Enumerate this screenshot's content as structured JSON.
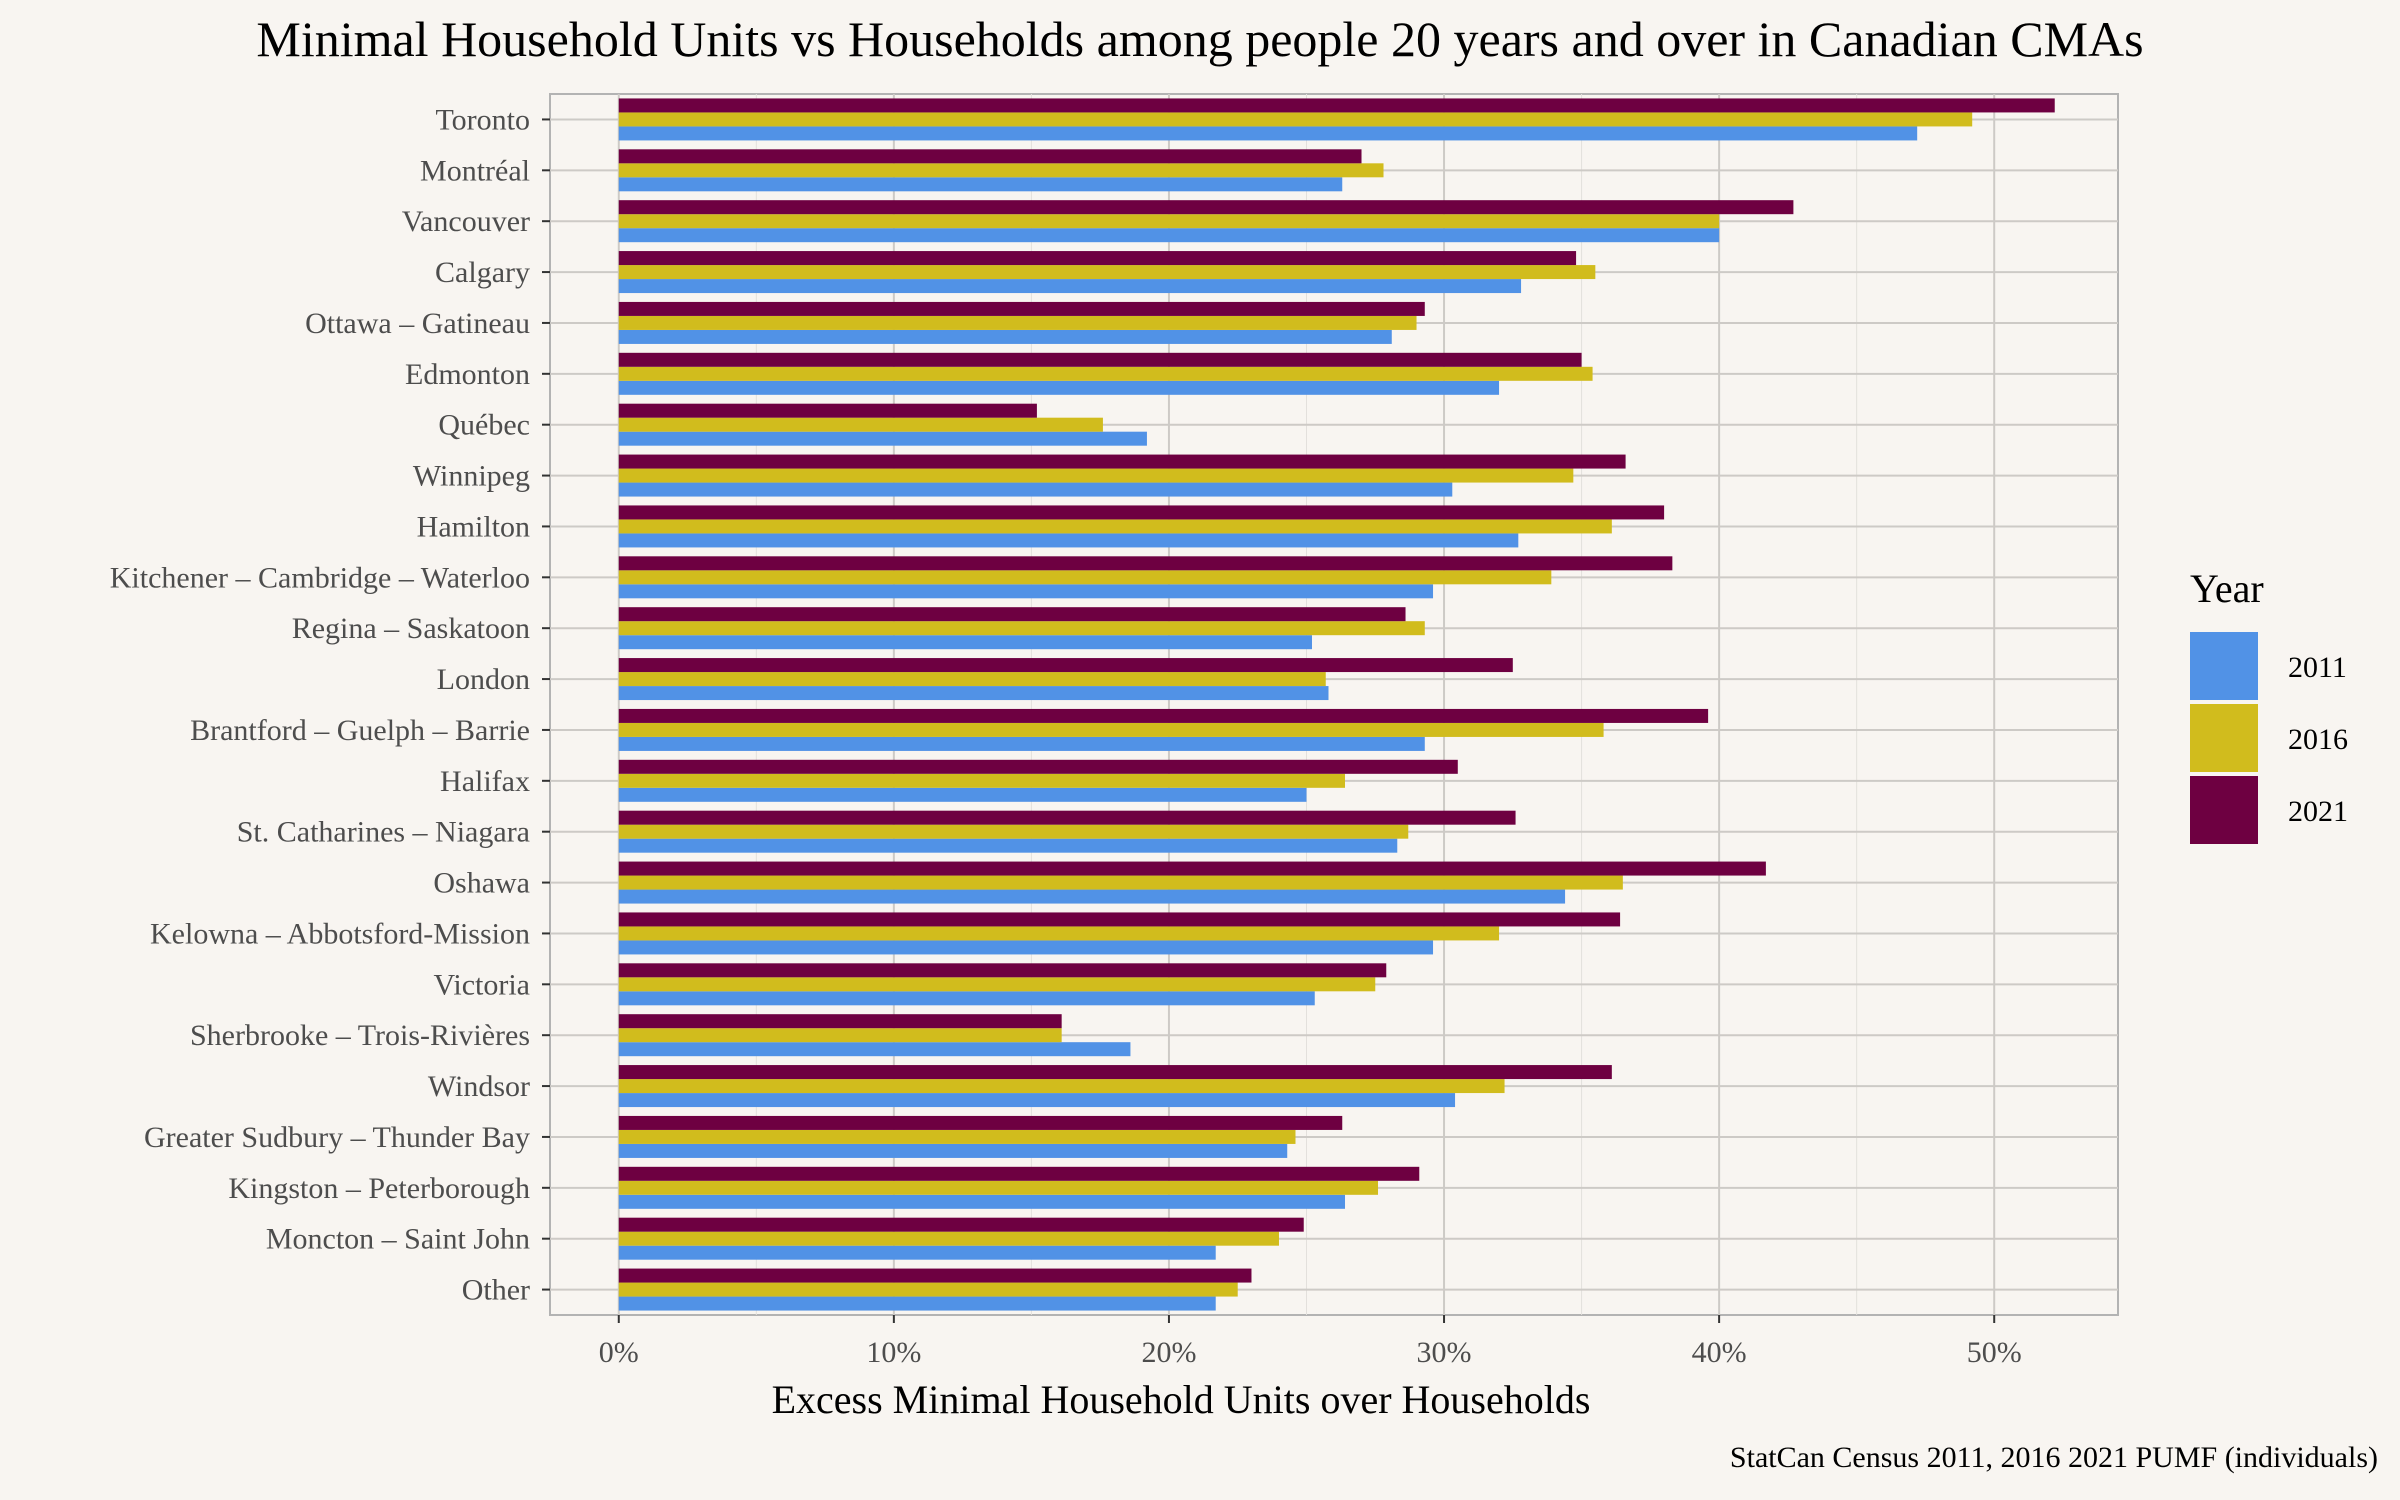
{
  "chart_data": {
    "type": "bar",
    "orientation": "horizontal",
    "title": "Minimal Household Units vs Households among people 20 years and over in Canadian CMAs",
    "xlabel": "Excess Minimal Household Units over Households",
    "ylabel": "",
    "caption": "StatCan Census 2011, 2016 2021 PUMF (individuals)",
    "xlim": [
      -0.025,
      0.545
    ],
    "x_ticks": [
      0,
      0.1,
      0.2,
      0.3,
      0.4,
      0.5
    ],
    "x_tick_labels": [
      "0%",
      "10%",
      "20%",
      "30%",
      "40%",
      "50%"
    ],
    "grid": true,
    "legend": {
      "title": "Year",
      "position": "right"
    },
    "categories": [
      "Toronto",
      "Montréal",
      "Vancouver",
      "Calgary",
      "Ottawa – Gatineau",
      "Edmonton",
      "Québec",
      "Winnipeg",
      "Hamilton",
      "Kitchener – Cambridge – Waterloo",
      "Regina – Saskatoon",
      "London",
      "Brantford – Guelph – Barrie",
      "Halifax",
      "St. Catharines – Niagara",
      "Oshawa",
      "Kelowna – Abbotsford-Mission",
      "Victoria",
      "Sherbrooke – Trois-Rivières",
      "Windsor",
      "Greater Sudbury – Thunder Bay",
      "Kingston – Peterborough",
      "Moncton – Saint John",
      "Other"
    ],
    "series": [
      {
        "name": "2011",
        "color": "#5192e6",
        "values": [
          0.472,
          0.263,
          0.4,
          0.328,
          0.281,
          0.32,
          0.192,
          0.303,
          0.327,
          0.296,
          0.252,
          0.258,
          0.293,
          0.25,
          0.283,
          0.344,
          0.296,
          0.253,
          0.186,
          0.304,
          0.243,
          0.264,
          0.217,
          0.217
        ]
      },
      {
        "name": "2016",
        "color": "#d1bc1d",
        "values": [
          0.492,
          0.278,
          0.4,
          0.355,
          0.29,
          0.354,
          0.176,
          0.347,
          0.361,
          0.339,
          0.293,
          0.257,
          0.358,
          0.264,
          0.287,
          0.365,
          0.32,
          0.275,
          0.161,
          0.322,
          0.246,
          0.276,
          0.24,
          0.225
        ]
      },
      {
        "name": "2021",
        "color": "#6e0041",
        "values": [
          0.522,
          0.27,
          0.427,
          0.348,
          0.293,
          0.35,
          0.152,
          0.366,
          0.38,
          0.383,
          0.286,
          0.325,
          0.396,
          0.305,
          0.326,
          0.417,
          0.364,
          0.279,
          0.161,
          0.361,
          0.263,
          0.291,
          0.249,
          0.23
        ]
      }
    ]
  }
}
